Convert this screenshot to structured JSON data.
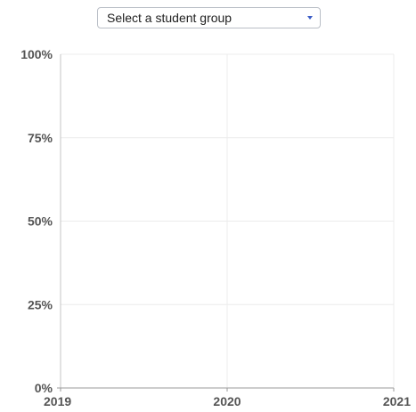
{
  "group_select": {
    "label": "Select a student group",
    "icon": "chevron-down-icon",
    "accent_color": "#3a5cc6"
  },
  "chart_data": {
    "type": "line",
    "title": "",
    "xlabel": "",
    "ylabel": "",
    "x_ticks": [
      "2019",
      "2020",
      "2021"
    ],
    "x_range": [
      2019,
      2021
    ],
    "y_ticks": [
      "0%",
      "25%",
      "50%",
      "75%",
      "100%"
    ],
    "y_tick_values": [
      0,
      25,
      50,
      75,
      100
    ],
    "ylim": [
      0,
      100
    ],
    "grid": true,
    "series": []
  }
}
